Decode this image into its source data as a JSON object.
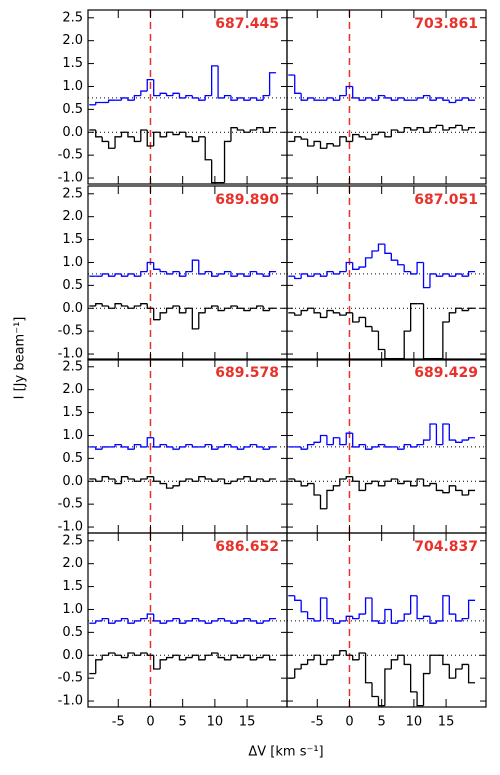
{
  "axes": {
    "x_label": "ΔV [km s⁻¹]",
    "y_label": "I [Jy beam⁻¹]",
    "x": [
      -9,
      -8,
      -7,
      -6,
      -5,
      -4,
      -3,
      -2,
      -1,
      0,
      1,
      2,
      3,
      4,
      5,
      6,
      7,
      8,
      9,
      10,
      11,
      12,
      13,
      14,
      15,
      16,
      17,
      18,
      19
    ],
    "xlim": [
      -9.7,
      21.2
    ],
    "ylim": [
      -1.13,
      2.67
    ],
    "xticks": [
      -5,
      0,
      5,
      10,
      15
    ],
    "yticks": [
      {
        "value": -1,
        "label": "-1.0"
      },
      -0.5,
      {
        "value": 0,
        "label": "0.0"
      },
      0.5,
      {
        "value": 1,
        "label": "1.0"
      },
      1.5,
      {
        "value": 2,
        "label": "2.0"
      },
      2.5
    ],
    "hlines": [
      0.75,
      0
    ],
    "vline": 0,
    "vline_color": "#e8312a"
  },
  "chart_data": [
    {
      "type": "line",
      "title": "687.445",
      "series": [
        {
          "color": "#0000ff",
          "values": [
            0.6,
            0.65,
            0.65,
            0.7,
            0.7,
            0.75,
            0.7,
            0.8,
            0.9,
            1.15,
            0.8,
            0.85,
            0.8,
            0.85,
            0.75,
            0.8,
            0.75,
            0.7,
            0.8,
            1.45,
            0.75,
            0.8,
            0.7,
            0.75,
            0.7,
            0.75,
            0.7,
            0.8,
            1.3
          ]
        },
        {
          "color": "#000000",
          "values": [
            0.05,
            -0.1,
            -0.2,
            -0.35,
            -0.1,
            0.0,
            -0.1,
            -0.2,
            0.05,
            -0.3,
            0.0,
            -0.1,
            0.0,
            -0.05,
            0.0,
            -0.1,
            -0.2,
            -0.1,
            -0.6,
            -1.1,
            -1.1,
            -0.2,
            0.1,
            0.05,
            0.0,
            0.05,
            0.1,
            0.0,
            0.1
          ]
        }
      ]
    },
    {
      "type": "line",
      "title": "703.861",
      "series": [
        {
          "color": "#0000ff",
          "values": [
            1.25,
            0.85,
            0.7,
            0.75,
            0.7,
            0.7,
            0.75,
            0.7,
            0.8,
            1.0,
            0.75,
            0.7,
            0.75,
            0.7,
            0.8,
            0.75,
            0.7,
            0.75,
            0.7,
            0.7,
            0.75,
            0.8,
            0.7,
            0.75,
            0.7,
            0.65,
            0.7,
            0.75,
            0.7
          ]
        },
        {
          "color": "#000000",
          "values": [
            -0.2,
            -0.1,
            -0.15,
            -0.3,
            -0.2,
            -0.35,
            -0.25,
            -0.3,
            -0.1,
            -0.2,
            -0.05,
            -0.1,
            -0.15,
            -0.05,
            0.0,
            -0.1,
            0.05,
            0.0,
            0.1,
            0.05,
            0.1,
            0.0,
            0.1,
            0.15,
            0.05,
            0.1,
            0.15,
            0.05,
            0.1
          ]
        }
      ]
    },
    {
      "type": "line",
      "title": "689.890",
      "series": [
        {
          "color": "#0000ff",
          "values": [
            0.7,
            0.7,
            0.75,
            0.7,
            0.75,
            0.7,
            0.75,
            0.7,
            0.8,
            1.0,
            0.85,
            0.8,
            0.75,
            0.8,
            0.7,
            0.8,
            1.05,
            0.75,
            0.8,
            0.7,
            0.75,
            0.8,
            0.7,
            0.75,
            0.7,
            0.8,
            0.75,
            0.7,
            0.8
          ]
        },
        {
          "color": "#000000",
          "values": [
            0.05,
            0.1,
            0.05,
            0.0,
            0.1,
            0.05,
            0.0,
            0.05,
            0.1,
            0.0,
            -0.25,
            -0.1,
            0.0,
            0.05,
            -0.1,
            0.0,
            -0.45,
            -0.1,
            0.0,
            0.05,
            -0.05,
            0.0,
            0.05,
            0.0,
            -0.05,
            0.0,
            0.05,
            -0.05,
            0.0
          ]
        }
      ]
    },
    {
      "type": "line",
      "title": "687.051",
      "series": [
        {
          "color": "#0000ff",
          "values": [
            0.7,
            0.65,
            0.75,
            0.7,
            0.75,
            0.7,
            0.8,
            0.75,
            0.8,
            1.0,
            0.85,
            0.9,
            1.1,
            1.25,
            1.4,
            1.2,
            1.05,
            0.95,
            0.8,
            0.75,
            1.0,
            0.45,
            0.75,
            0.7,
            0.75,
            0.7,
            0.75,
            0.7,
            0.8
          ]
        },
        {
          "color": "#000000",
          "values": [
            -0.1,
            -0.15,
            -0.05,
            0.0,
            -0.1,
            -0.2,
            -0.05,
            -0.1,
            -0.15,
            -0.1,
            -0.3,
            -0.2,
            -0.4,
            -0.5,
            -0.9,
            -1.1,
            -1.1,
            -1.1,
            -0.5,
            0.1,
            0.1,
            -1.1,
            -1.1,
            -1.1,
            -0.3,
            -0.1,
            0.0,
            -0.05,
            0.0
          ]
        }
      ]
    },
    {
      "type": "line",
      "title": "689.578",
      "series": [
        {
          "color": "#0000ff",
          "values": [
            0.75,
            0.7,
            0.75,
            0.75,
            0.8,
            0.75,
            0.7,
            0.8,
            0.75,
            0.95,
            0.75,
            0.8,
            0.75,
            0.7,
            0.75,
            0.8,
            0.75,
            0.75,
            0.8,
            0.7,
            0.75,
            0.8,
            0.75,
            0.7,
            0.75,
            0.8,
            0.75,
            0.7,
            0.75
          ]
        },
        {
          "color": "#000000",
          "values": [
            0.05,
            0.0,
            0.1,
            0.05,
            -0.05,
            0.1,
            0.05,
            0.0,
            0.05,
            0.1,
            0.0,
            -0.05,
            -0.15,
            -0.1,
            0.0,
            0.05,
            0.0,
            0.1,
            0.05,
            0.0,
            0.05,
            -0.05,
            0.0,
            0.05,
            0.1,
            0.0,
            0.05,
            0.0,
            0.05
          ]
        }
      ]
    },
    {
      "type": "line",
      "title": "689.429",
      "series": [
        {
          "color": "#0000ff",
          "values": [
            0.75,
            0.75,
            0.7,
            0.8,
            0.85,
            1.0,
            0.8,
            0.95,
            0.8,
            1.05,
            0.75,
            0.8,
            0.7,
            0.75,
            0.8,
            0.75,
            0.75,
            0.7,
            0.8,
            0.75,
            0.8,
            0.9,
            1.25,
            0.8,
            1.25,
            0.9,
            0.85,
            0.9,
            0.95
          ]
        },
        {
          "color": "#000000",
          "values": [
            0.05,
            0.0,
            -0.1,
            -0.05,
            -0.3,
            -0.6,
            -0.2,
            -0.1,
            0.05,
            0.1,
            0.0,
            -0.2,
            -0.05,
            0.0,
            -0.1,
            0.0,
            0.05,
            -0.05,
            0.0,
            -0.1,
            0.05,
            -0.1,
            -0.05,
            -0.2,
            -0.25,
            -0.1,
            -0.2,
            -0.3,
            -0.2
          ]
        }
      ]
    },
    {
      "type": "line",
      "title": "686.652",
      "series": [
        {
          "color": "#0000ff",
          "values": [
            0.7,
            0.75,
            0.8,
            0.7,
            0.75,
            0.8,
            0.7,
            0.75,
            0.8,
            0.9,
            0.75,
            0.7,
            0.75,
            0.8,
            0.7,
            0.75,
            0.8,
            0.75,
            0.7,
            0.75,
            0.8,
            0.75,
            0.7,
            0.75,
            0.8,
            0.75,
            0.7,
            0.75,
            0.8
          ]
        },
        {
          "color": "#000000",
          "values": [
            -0.4,
            -0.1,
            0.0,
            0.05,
            0.0,
            -0.05,
            0.05,
            0.0,
            0.05,
            0.0,
            -0.3,
            -0.1,
            -0.05,
            0.0,
            -0.1,
            -0.05,
            0.0,
            -0.1,
            0.0,
            0.05,
            -0.05,
            -0.1,
            0.0,
            -0.05,
            0.0,
            -0.1,
            -0.05,
            0.0,
            -0.1
          ]
        }
      ]
    },
    {
      "type": "line",
      "title": "704.837",
      "series": [
        {
          "color": "#0000ff",
          "values": [
            1.3,
            1.2,
            0.95,
            0.8,
            0.75,
            1.25,
            0.8,
            0.7,
            0.75,
            0.85,
            0.8,
            0.9,
            1.25,
            0.75,
            0.7,
            1.0,
            0.7,
            0.75,
            0.9,
            1.3,
            0.8,
            0.85,
            0.7,
            0.75,
            1.3,
            0.9,
            0.75,
            0.8,
            1.2
          ]
        },
        {
          "color": "#000000",
          "values": [
            -0.5,
            -0.3,
            -0.2,
            -0.1,
            0.0,
            -0.2,
            -0.1,
            0.0,
            0.1,
            0.0,
            -0.1,
            0.05,
            -0.6,
            -0.9,
            -1.1,
            -0.3,
            -0.1,
            0.0,
            -0.2,
            -0.8,
            -1.1,
            -0.4,
            0.0,
            0.0,
            -0.2,
            -0.5,
            -0.3,
            -0.2,
            -0.6
          ]
        }
      ]
    }
  ]
}
